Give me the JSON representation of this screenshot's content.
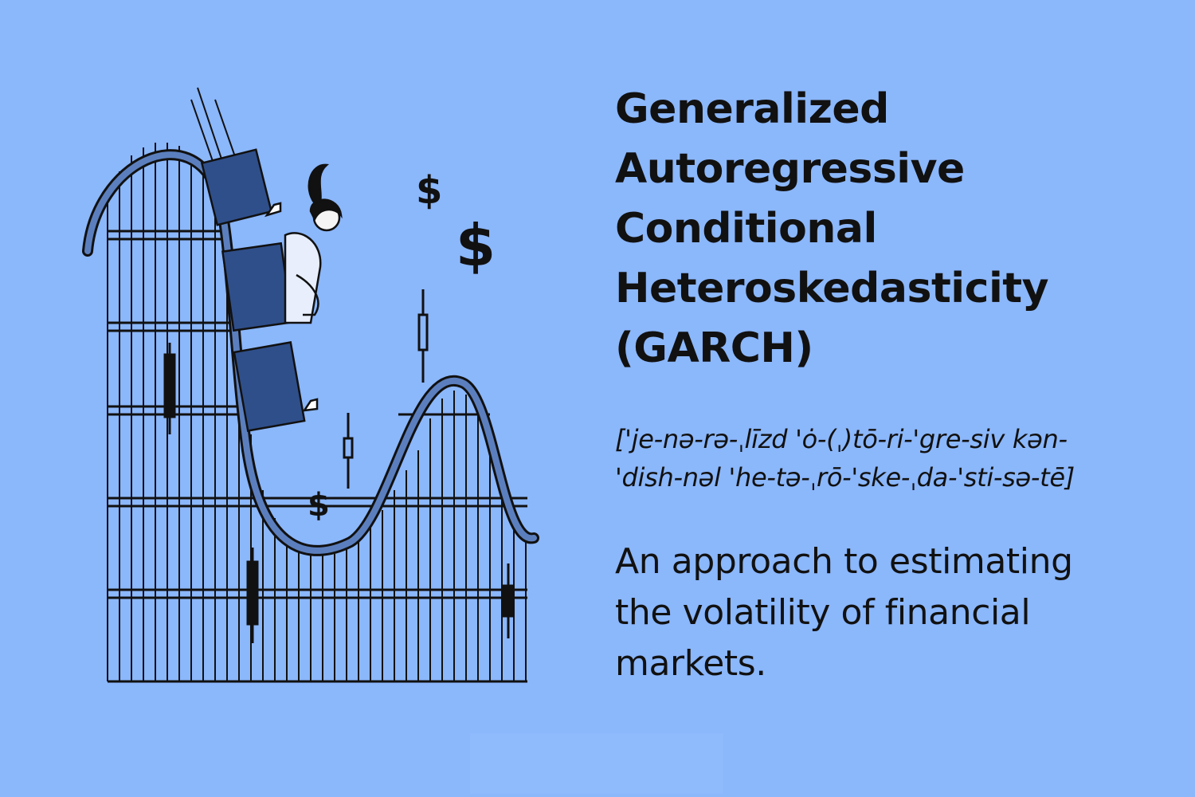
{
  "title_lines": [
    "Generalized",
    "Autoregressive",
    "Conditional",
    "Heteroskedasticity",
    "(GARCH)"
  ],
  "pronunciation_lines": [
    "['je-nə-rə-ˌlīzd 'ȯ-(ˌ)tō-ri-'gre-siv kən-",
    "'dish-nəl 'he-tə-ˌrō-'ske-ˌda-'sti-sə-tē]"
  ],
  "definition_lines": [
    "An approach to estimating",
    "the volatility of financial",
    "markets."
  ],
  "dollar_sign": "$",
  "colors": {
    "background": "#8bb7fb",
    "track_navy": "#2c4577",
    "car_navy": "#2f4f8a",
    "ink": "#111111"
  },
  "icons": [
    "roller-coaster-illustration",
    "rider-figure",
    "dollar-sign-icon",
    "candlestick-icon"
  ]
}
